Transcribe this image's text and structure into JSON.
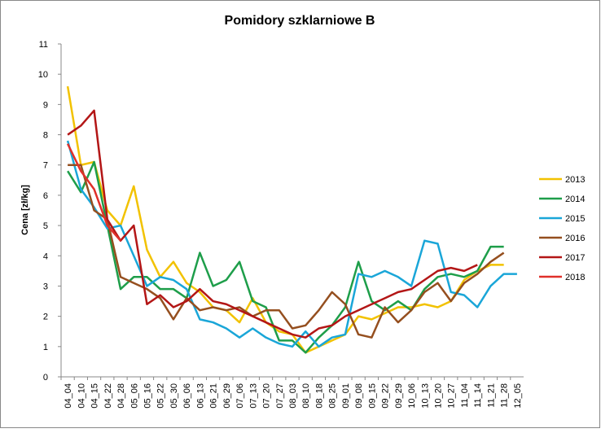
{
  "chart_data": {
    "type": "line",
    "title": "Pomidory szklarniowe B",
    "y_label": "Cena [zł/kg]",
    "categories": [
      "04_04",
      "04_10",
      "04_15",
      "04_22",
      "04_28",
      "05_06",
      "05_16",
      "05_22",
      "05_30",
      "06_06",
      "06_13",
      "06_21",
      "06_29",
      "07_06",
      "07_13",
      "07_20",
      "07_27",
      "08_03",
      "08_10",
      "08_18",
      "08_25",
      "09_01",
      "09_08",
      "09_15",
      "09_22",
      "09_29",
      "10_06",
      "10_13",
      "10_20",
      "10_27",
      "11_04",
      "11_14",
      "11_21",
      "11_28",
      "12_05"
    ],
    "series": [
      {
        "name": "2013",
        "color": "#f2c200",
        "values": [
          9.6,
          7.0,
          7.1,
          5.5,
          5.0,
          6.3,
          4.2,
          3.3,
          3.8,
          3.1,
          2.8,
          2.3,
          2.2,
          1.8,
          2.6,
          1.8,
          1.5,
          1.4,
          0.8,
          1.0,
          1.2,
          1.4,
          2.0,
          1.9,
          2.1,
          2.3,
          2.3,
          2.4,
          2.3,
          2.5,
          3.2,
          3.5,
          3.7,
          3.7,
          null
        ]
      },
      {
        "name": "2014",
        "color": "#1e9e4a",
        "values": [
          6.8,
          6.1,
          7.1,
          5.0,
          2.9,
          3.3,
          3.3,
          2.9,
          2.9,
          2.6,
          4.1,
          3.0,
          3.2,
          3.8,
          2.5,
          2.3,
          1.2,
          1.2,
          0.8,
          1.3,
          1.7,
          2.3,
          3.8,
          2.5,
          2.2,
          2.5,
          2.2,
          2.9,
          3.3,
          3.4,
          3.3,
          3.5,
          4.3,
          4.3,
          null
        ]
      },
      {
        "name": "2015",
        "color": "#1aa6d8",
        "values": [
          7.8,
          6.2,
          5.6,
          4.9,
          5.0,
          4.0,
          3.0,
          3.3,
          3.2,
          2.9,
          1.9,
          1.8,
          1.6,
          1.3,
          1.6,
          1.3,
          1.1,
          1.0,
          1.5,
          1.0,
          1.3,
          1.4,
          3.4,
          3.3,
          3.5,
          3.3,
          3.0,
          4.5,
          4.4,
          2.8,
          2.7,
          2.3,
          3.0,
          3.4,
          3.4
        ]
      },
      {
        "name": "2016",
        "color": "#954f1f",
        "values": [
          7.0,
          7.0,
          5.5,
          5.2,
          3.3,
          3.1,
          2.9,
          2.6,
          1.9,
          2.6,
          2.2,
          2.3,
          2.2,
          2.3,
          2.0,
          2.2,
          2.2,
          1.6,
          1.7,
          2.2,
          2.8,
          2.4,
          1.4,
          1.3,
          2.3,
          1.8,
          2.2,
          2.8,
          3.1,
          2.5,
          3.1,
          3.4,
          3.8,
          4.1,
          null
        ]
      },
      {
        "name": "2017",
        "color": "#b31616",
        "values": [
          8.0,
          8.3,
          8.8,
          5.2,
          4.5,
          5.0,
          2.4,
          2.7,
          2.3,
          2.5,
          2.9,
          2.5,
          2.4,
          2.2,
          2.0,
          1.8,
          1.6,
          1.4,
          1.3,
          1.6,
          1.7,
          2.0,
          2.2,
          2.4,
          2.6,
          2.8,
          2.9,
          3.2,
          3.5,
          3.6,
          3.5,
          3.7,
          null,
          null,
          null
        ]
      },
      {
        "name": "2018",
        "color": "#e0302a",
        "values": [
          7.7,
          6.8,
          6.2,
          5.0,
          4.5,
          null,
          null,
          null,
          null,
          null,
          null,
          null,
          null,
          null,
          null,
          null,
          null,
          null,
          null,
          null,
          null,
          null,
          null,
          null,
          null,
          null,
          null,
          null,
          null,
          null,
          null,
          null,
          null,
          null,
          null
        ]
      }
    ],
    "ylim": [
      0,
      11
    ],
    "yticks": [
      0,
      1,
      2,
      3,
      4,
      5,
      6,
      7,
      8,
      9,
      10,
      11
    ],
    "grid": false,
    "legend": "right"
  }
}
